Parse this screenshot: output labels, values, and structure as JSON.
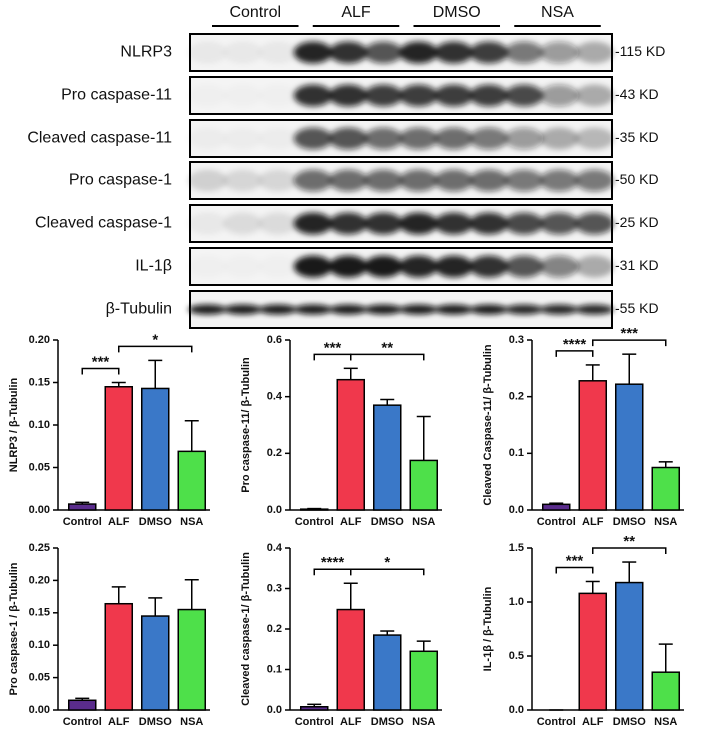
{
  "blot": {
    "groups": [
      "Control",
      "ALF",
      "DMSO",
      "NSA"
    ],
    "rows": [
      {
        "label": "NLRP3",
        "size": "-115 KD"
      },
      {
        "label": "Pro caspase-11",
        "size": "-43 KD"
      },
      {
        "label": "Cleaved caspase-11",
        "size": "-35 KD"
      },
      {
        "label": "Pro caspase-1",
        "size": "-50 KD"
      },
      {
        "label": "Cleaved caspase-1",
        "size": "-25 KD"
      },
      {
        "label": "IL-1β",
        "size": "-31 KD"
      },
      {
        "label": "β-Tubulin",
        "size": "-55 KD"
      }
    ]
  },
  "chart_data": [
    {
      "type": "bar",
      "y_label": "NLRP3 / β-Tubulin",
      "categories": [
        "Control",
        "ALF",
        "DMSO",
        "NSA"
      ],
      "values": [
        0.007,
        0.145,
        0.143,
        0.069
      ],
      "errors": [
        0.002,
        0.005,
        0.033,
        0.036
      ],
      "colors": [
        "#5a2c8c",
        "#f0384c",
        "#3a78c8",
        "#4ee04a"
      ],
      "ylim": [
        0,
        0.2
      ],
      "yticks": [
        {
          "value": 0,
          "label": "0.00"
        },
        0.05,
        {
          "value": 0.1,
          "label": "0.10"
        },
        0.15,
        {
          "value": 0.2,
          "label": "0.20"
        }
      ],
      "annotations": [
        {
          "text": "***",
          "between": [
            "Control",
            "ALF"
          ]
        },
        {
          "text": "*",
          "between": [
            "ALF",
            "NSA"
          ]
        }
      ]
    },
    {
      "type": "bar",
      "y_label": "Pro caspase-11/ β-Tubulin",
      "categories": [
        "Control",
        "ALF",
        "DMSO",
        "NSA"
      ],
      "values": [
        0.003,
        0.46,
        0.37,
        0.175
      ],
      "errors": [
        0.002,
        0.04,
        0.02,
        0.155
      ],
      "colors": [
        "#5a2c8c",
        "#f0384c",
        "#3a78c8",
        "#4ee04a"
      ],
      "ylim": [
        0,
        0.6
      ],
      "yticks": [
        {
          "value": 0,
          "label": "0.0"
        },
        0.2,
        0.4,
        0.6
      ],
      "annotations": [
        {
          "text": "***",
          "between": [
            "Control",
            "ALF"
          ]
        },
        {
          "text": "**",
          "between": [
            "ALF",
            "NSA"
          ]
        }
      ]
    },
    {
      "type": "bar",
      "y_label": "Cleaved Caspase-11/ β-Tubulin",
      "categories": [
        "Control",
        "ALF",
        "DMSO",
        "NSA"
      ],
      "values": [
        0.01,
        0.228,
        0.222,
        0.075
      ],
      "errors": [
        0.002,
        0.028,
        0.053,
        0.01
      ],
      "colors": [
        "#5a2c8c",
        "#f0384c",
        "#3a78c8",
        "#4ee04a"
      ],
      "ylim": [
        0,
        0.3
      ],
      "yticks": [
        {
          "value": 0,
          "label": "0.0"
        },
        0.1,
        0.2,
        0.3
      ],
      "annotations": [
        {
          "text": "****",
          "between": [
            "Control",
            "ALF"
          ]
        },
        {
          "text": "***",
          "between": [
            "ALF",
            "NSA"
          ]
        }
      ]
    },
    {
      "type": "bar",
      "y_label": "Pro caspase-1 / β-Tubulin",
      "categories": [
        "Control",
        "ALF",
        "DMSO",
        "NSA"
      ],
      "values": [
        0.015,
        0.164,
        0.145,
        0.155
      ],
      "errors": [
        0.003,
        0.026,
        0.028,
        0.046
      ],
      "colors": [
        "#5a2c8c",
        "#f0384c",
        "#3a78c8",
        "#4ee04a"
      ],
      "ylim": [
        0,
        0.25
      ],
      "yticks": [
        {
          "value": 0,
          "label": "0.00"
        },
        0.05,
        {
          "value": 0.1,
          "label": "0.10"
        },
        0.15,
        {
          "value": 0.2,
          "label": "0.20"
        },
        0.25
      ],
      "annotations": []
    },
    {
      "type": "bar",
      "y_label": "Cleaved caspase-1/ β-Tubulin",
      "categories": [
        "Control",
        "ALF",
        "DMSO",
        "NSA"
      ],
      "values": [
        0.008,
        0.248,
        0.185,
        0.145
      ],
      "errors": [
        0.006,
        0.065,
        0.01,
        0.025
      ],
      "colors": [
        "#5a2c8c",
        "#f0384c",
        "#3a78c8",
        "#4ee04a"
      ],
      "ylim": [
        0,
        0.4
      ],
      "yticks": [
        {
          "value": 0,
          "label": "0.0"
        },
        0.1,
        0.2,
        0.3,
        0.4
      ],
      "annotations": [
        {
          "text": "****",
          "between": [
            "Control",
            "ALF"
          ]
        },
        {
          "text": "*",
          "between": [
            "ALF",
            "NSA"
          ]
        }
      ]
    },
    {
      "type": "bar",
      "y_label": "IL-1β / β-Tubulin",
      "categories": [
        "Control",
        "ALF",
        "DMSO",
        "NSA"
      ],
      "values": [
        0,
        1.08,
        1.18,
        0.35
      ],
      "errors": [
        0,
        0.11,
        0.19,
        0.26
      ],
      "colors": [
        "#5a2c8c",
        "#f0384c",
        "#3a78c8",
        "#4ee04a"
      ],
      "ylim": [
        0,
        1.5
      ],
      "yticks": [
        {
          "value": 0,
          "label": "0.0"
        },
        0.5,
        {
          "value": 1,
          "label": "1.0"
        },
        1.5
      ],
      "annotations": [
        {
          "text": "***",
          "between": [
            "Control",
            "ALF"
          ]
        },
        {
          "text": "**",
          "between": [
            "ALF",
            "NSA"
          ]
        }
      ]
    }
  ]
}
